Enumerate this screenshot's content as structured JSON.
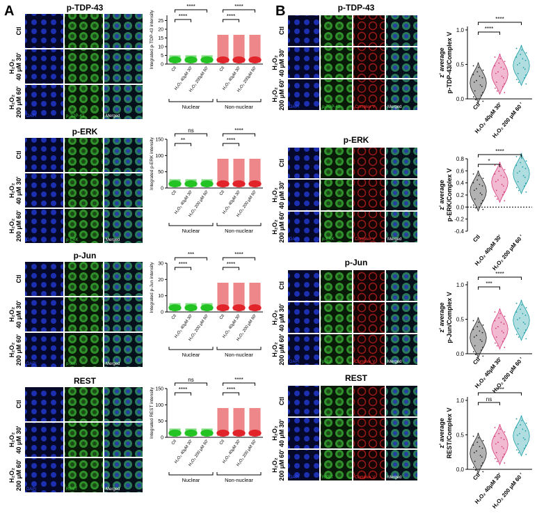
{
  "panel_a": {
    "label": "A",
    "blocks": [
      {
        "title": "p-TDP-43",
        "row_labels": [
          [
            "Ctl"
          ],
          [
            "H₂O₂",
            "40 μM 30'"
          ],
          [
            "H₂O₂",
            "200 μM 60'"
          ]
        ],
        "channel_labels": [
          "DAPI",
          "p-TDP-43",
          "Merged"
        ],
        "plot": {
          "ylabel": "Integrated p-TDP-43 intensity",
          "ylim": [
            0,
            28
          ],
          "yticks": [
            0,
            5,
            10,
            15,
            20,
            25
          ],
          "categories": [
            "Ctl",
            "H₂O₂ 40μM 30'",
            "H₂O₂ 200μM 60'",
            "Ctl",
            "H₂O₂ 40μM 30'",
            "H₂O₂ 200μM 60'"
          ],
          "groups": [
            "Nuclear",
            "Non-nuclear"
          ],
          "significance": [
            "****",
            "****",
            "****",
            "****"
          ]
        }
      },
      {
        "title": "p-ERK",
        "row_labels": [
          [
            "Ctl"
          ],
          [
            "H₂O₂",
            "40 μM 30'"
          ],
          [
            "H₂O₂",
            "200 μM 60'"
          ]
        ],
        "channel_labels": [
          "DAPI",
          "p-ERK",
          "Merged"
        ],
        "plot": {
          "ylabel": "Integrated p-ERK intensity",
          "ylim": [
            0,
            150
          ],
          "yticks": [
            0,
            50,
            100,
            150
          ],
          "categories": [
            "Ctl",
            "H₂O₂ 40μM 30'",
            "H₂O₂ 200 μM 60'",
            "Ctl",
            "H₂O₂ 40μM 30'",
            "H₂O₂ 200 μM 60'"
          ],
          "groups": [
            "Nuclear",
            "Non-nuclear"
          ],
          "significance": [
            "ns",
            "**",
            "****",
            "****"
          ]
        }
      },
      {
        "title": "p-Jun",
        "row_labels": [
          [
            "Ctl"
          ],
          [
            "H₂O₂",
            "40 μM 30'"
          ],
          [
            "H₂O₂",
            "200 μM 60'"
          ]
        ],
        "channel_labels": [
          "DAPI",
          "p-Jun",
          "Merged"
        ],
        "plot": {
          "ylabel": "Integrated p-Jun intensity",
          "ylim": [
            0,
            30
          ],
          "yticks": [
            0,
            10,
            20,
            30
          ],
          "categories": [
            "Ctl",
            "H₂O₂ 40μM 30'",
            "H₂O₂ 200 μM 60'",
            "Ctl",
            "H₂O₂ 40μM 30'",
            "H₂O₂ 200 μM 60'"
          ],
          "groups": [
            "Nuclear",
            "Non-nuclear"
          ],
          "significance": [
            "***",
            "****",
            "****",
            "****"
          ]
        }
      },
      {
        "title": "REST",
        "row_labels": [
          [
            "Ctl"
          ],
          [
            "H₂O₂",
            "40 μM 30'"
          ],
          [
            "H₂O₂",
            "200 μM 60'"
          ]
        ],
        "channel_labels": [
          "DAPI",
          "REST",
          "Merged"
        ],
        "plot": {
          "ylabel": "Integrated REST intensity",
          "ylim": [
            0,
            150
          ],
          "yticks": [
            0,
            50,
            100,
            150
          ],
          "categories": [
            "Ctl",
            "H₂O₂ 40μM 30'",
            "H₂O₂ 200 μM 60'",
            "Ctl",
            "H₂O₂ 40μM 30'",
            "H₂O₂ 200 μM 60'"
          ],
          "groups": [
            "Nuclear",
            "Non-nuclear"
          ],
          "significance": [
            "ns",
            "****",
            "****",
            "****"
          ]
        }
      }
    ]
  },
  "panel_b": {
    "label": "B",
    "blocks": [
      {
        "title": "p-TDP-43",
        "row_labels": [
          [
            "Ctl"
          ],
          [
            "H₂O₂",
            "40 μM 30'"
          ],
          [
            "H₂O₂",
            "200 μM 60'"
          ]
        ],
        "channel_labels": [
          "DAPI",
          "p-TDP-43",
          "Complex V",
          "Merged"
        ],
        "plot": {
          "ylabel": [
            "z' average",
            "p-TDP-43/Complex V"
          ],
          "ylim": [
            0,
            1.05
          ],
          "yticks": [
            {
              "value": 0,
              "label": "0.0"
            },
            {
              "value": 0.5,
              "label": "0.5"
            },
            {
              "value": 1,
              "label": "1.0"
            }
          ],
          "categories": [
            "Ctl",
            "H₂O₂ 40μM 30'",
            "H₂O₂ 200 μM 60 '"
          ],
          "significance": [
            "****",
            "****"
          ]
        }
      },
      {
        "title": "p-ERK",
        "row_labels": [
          [
            "Ctl"
          ],
          [
            "H₂O₂",
            "40 μM 30'"
          ],
          [
            "H₂O₂",
            "200 μM 60'"
          ]
        ],
        "channel_labels": [
          "DAPI",
          "p-ERK",
          "Complex V",
          "Merged"
        ],
        "plot": {
          "ylabel": [
            "z' average",
            "p-ERK/Complex V"
          ],
          "ylim": [
            -0.4,
            0.8
          ],
          "yticks": [
            {
              "value": -0.4,
              "label": "-0.4"
            },
            {
              "value": -0.2,
              "label": "-0.2"
            },
            {
              "value": 0,
              "label": "0.0"
            },
            {
              "value": 0.2,
              "label": "0.2"
            },
            {
              "value": 0.4,
              "label": "0.4"
            },
            {
              "value": 0.6,
              "label": "0.6"
            },
            {
              "value": 0.8,
              "label": "0.8"
            }
          ],
          "categories": [
            "Ctl",
            "H₂O₂ 40μM 30'",
            "H₂O₂ 200 μM 60 '"
          ],
          "significance": [
            "****",
            "*"
          ]
        }
      },
      {
        "title": "p-Jun",
        "row_labels": [
          [
            "Ctl"
          ],
          [
            "H₂O₂",
            "40 μM 30'"
          ],
          [
            "H₂O₂",
            "200 μM 60'"
          ]
        ],
        "channel_labels": [
          "DAPI",
          "p-Jun",
          "Complex V",
          "Merged"
        ],
        "plot": {
          "ylabel": [
            "z' average",
            "p-Jun/Complex V"
          ],
          "ylim": [
            0,
            1.05
          ],
          "yticks": [
            {
              "value": 0,
              "label": "0.0"
            },
            {
              "value": 0.5,
              "label": "0.5"
            },
            {
              "value": 1,
              "label": "1.0"
            }
          ],
          "categories": [
            "Ctl",
            "H₂O₂ 40μM 30'",
            "H₂O₂ 200 μM 60 '"
          ],
          "significance": [
            "****",
            "***"
          ]
        }
      },
      {
        "title": "REST",
        "row_labels": [
          [
            "Ctl"
          ],
          [
            "H₂O₂",
            "40 μM 30'"
          ],
          [
            "H₂O₂",
            "200 μM 60'"
          ]
        ],
        "channel_labels": [
          "DAPI",
          "REST",
          "Complex V",
          "Merged"
        ],
        "plot": {
          "ylabel": [
            "z' average",
            "REST/Complex V"
          ],
          "ylim": [
            0,
            1.05
          ],
          "yticks": [
            {
              "value": 0,
              "label": "0.0"
            },
            {
              "value": 0.5,
              "label": "0.5"
            },
            {
              "value": 1,
              "label": "1.0"
            }
          ],
          "categories": [
            "Ctl",
            "H₂O₂ 40μM 30'",
            "H₂O₂ 200 μM 60 '"
          ],
          "significance": [
            "****",
            "ns"
          ]
        }
      }
    ]
  }
}
